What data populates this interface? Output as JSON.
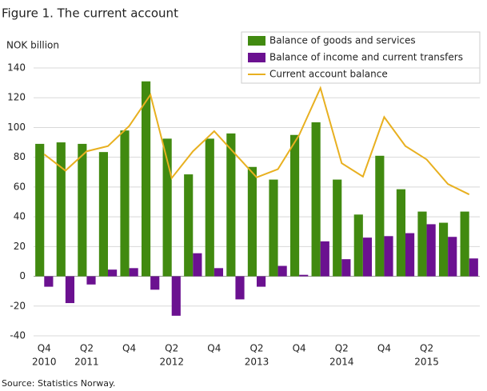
{
  "chart_data": {
    "type": "bar-line",
    "title": "Figure 1. The current account",
    "y_label": "NOK billion",
    "source": "Source: Statistics Norway.",
    "categories": [
      "Q4",
      null,
      "Q2",
      null,
      "Q4",
      null,
      "Q2",
      null,
      "Q4",
      null,
      "Q2",
      null,
      "Q4",
      null,
      "Q2",
      null,
      "Q4",
      null,
      "Q2",
      null,
      null
    ],
    "category_years": [
      "2010",
      null,
      "2011",
      null,
      null,
      null,
      "2012",
      null,
      null,
      null,
      "2013",
      null,
      null,
      null,
      "2014",
      null,
      null,
      null,
      "2015",
      null,
      null
    ],
    "series": [
      {
        "name": "Balance of goods and services",
        "type": "bar",
        "color": "#418a10",
        "values": [
          89,
          90,
          89,
          83.5,
          98,
          131,
          92.5,
          68.5,
          92.5,
          96,
          73.5,
          65,
          95,
          103.5,
          65,
          41.5,
          81,
          58.5,
          43.5,
          36,
          43.5
        ]
      },
      {
        "name": "Balance of income and current transfers",
        "type": "bar",
        "color": "#6b1190",
        "values": [
          -7,
          -18,
          -5.5,
          4.5,
          5.5,
          -9,
          -26.5,
          15.5,
          5.5,
          -15.5,
          -7,
          7,
          1,
          23.5,
          11.5,
          26,
          27,
          29,
          35,
          26.5,
          12
        ]
      },
      {
        "name": "Current account balance",
        "type": "line",
        "color": "#e8b020",
        "values": [
          82,
          71,
          84,
          87.5,
          101,
          122,
          66,
          84,
          97.5,
          82,
          66.5,
          72,
          95,
          126.5,
          76,
          67,
          107,
          87.5,
          78.5,
          62,
          55
        ]
      }
    ],
    "ylim": [
      -40,
      140
    ],
    "yticks": [
      -40,
      -20,
      0,
      20,
      40,
      60,
      80,
      100,
      120,
      140
    ],
    "grid": true
  }
}
